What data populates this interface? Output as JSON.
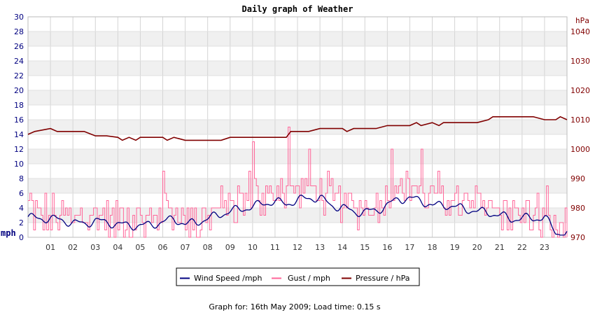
{
  "chart_data": {
    "type": "line",
    "title": "Daily graph of Weather",
    "left_axis": {
      "label": "mph",
      "ylim": [
        0,
        30
      ],
      "ticks": [
        0,
        2,
        4,
        6,
        8,
        10,
        12,
        14,
        16,
        18,
        20,
        22,
        24,
        26,
        28,
        30
      ],
      "color": "#000080"
    },
    "right_axis": {
      "label": "hPa",
      "ylim": [
        970,
        1045
      ],
      "ticks": [
        970,
        980,
        990,
        1000,
        1010,
        1020,
        1030,
        1040
      ],
      "color": "#800000"
    },
    "x_axis": {
      "range": [
        0,
        24
      ],
      "ticks": [
        "01",
        "02",
        "03",
        "04",
        "05",
        "06",
        "07",
        "08",
        "09",
        "10",
        "11",
        "12",
        "13",
        "14",
        "15",
        "16",
        "17",
        "18",
        "19",
        "20",
        "21",
        "22",
        "23"
      ]
    },
    "grid": "horizontal bands + vertical hour lines",
    "legend_position": "bottom-center",
    "series": [
      {
        "name": "Wind Speed /mph",
        "axis": "left",
        "color": "#000080",
        "x": [
          0,
          0.5,
          1,
          1.5,
          2,
          2.5,
          3,
          3.5,
          4,
          4.5,
          5,
          5.5,
          6,
          6.5,
          7,
          7.5,
          8,
          8.5,
          9,
          9.5,
          10,
          10.5,
          11,
          11.5,
          12,
          12.5,
          13,
          13.5,
          14,
          14.5,
          15,
          15.5,
          16,
          16.5,
          17,
          17.5,
          18,
          18.5,
          19,
          19.5,
          20,
          20.5,
          21,
          21.5,
          22,
          22.5,
          23,
          23.5,
          24
        ],
        "values": [
          2.8,
          2.5,
          2.6,
          2.3,
          2.0,
          1.8,
          2.3,
          2.0,
          1.8,
          1.6,
          1.6,
          1.7,
          2.1,
          2.5,
          1.8,
          2.0,
          2.6,
          3.0,
          3.6,
          3.8,
          4.2,
          4.6,
          4.9,
          4.5,
          5.1,
          5.3,
          5.4,
          4.3,
          4.1,
          3.4,
          3.5,
          3.6,
          4.4,
          5.2,
          5.3,
          5.0,
          4.3,
          4.4,
          4.2,
          3.8,
          3.6,
          3.3,
          3.1,
          2.4,
          2.7,
          2.5,
          2.8,
          0.6,
          0.6
        ]
      },
      {
        "name": "Gust / mph",
        "axis": "left",
        "color": "#ff6699",
        "x": [
          0,
          0.5,
          1,
          1.5,
          2,
          2.5,
          3,
          3.5,
          4,
          4.5,
          5,
          5.5,
          6,
          6.5,
          7,
          7.5,
          8,
          8.5,
          9,
          9.5,
          10,
          10.5,
          11,
          11.5,
          12,
          12.5,
          13,
          13.5,
          14,
          14.5,
          15,
          15.5,
          16,
          16.5,
          17,
          17.5,
          18,
          18.5,
          19,
          19.5,
          20,
          20.5,
          21,
          21.5,
          22,
          22.5,
          23,
          23.5,
          24
        ],
        "values": [
          5.0,
          4.0,
          2.5,
          3.0,
          3.0,
          3.0,
          3.0,
          3.0,
          3.0,
          3.0,
          2.5,
          3.0,
          4.0,
          4.0,
          3.0,
          3.0,
          3.5,
          4.0,
          5.0,
          5.5,
          6.5,
          6.5,
          6.5,
          7.0,
          7.0,
          7.0,
          6.0,
          6.0,
          5.0,
          4.5,
          4.5,
          4.5,
          7.0,
          7.0,
          6.5,
          6.5,
          5.5,
          6.0,
          5.5,
          5.0,
          5.0,
          4.5,
          4.5,
          4.0,
          4.0,
          4.0,
          3.5,
          1.5,
          1.5
        ],
        "peaks": [
          [
            6.0,
            9.0
          ],
          [
            10.0,
            13.0
          ],
          [
            11.6,
            15.0
          ],
          [
            12.5,
            12.0
          ],
          [
            16.2,
            12.0
          ],
          [
            17.5,
            12.0
          ]
        ]
      },
      {
        "name": "Pressure / hPa",
        "axis": "right",
        "color": "#800000",
        "x": [
          0,
          0.3,
          1,
          1.3,
          2,
          2.5,
          3,
          3.5,
          4,
          4.2,
          4.5,
          4.8,
          5,
          5.5,
          6,
          6.2,
          6.5,
          7,
          7.5,
          8,
          8.6,
          9,
          9.5,
          10,
          10.5,
          11,
          11.5,
          11.7,
          12,
          12.5,
          13,
          13.5,
          14,
          14.2,
          14.5,
          15,
          15.5,
          16,
          16.5,
          17,
          17.3,
          17.5,
          18,
          18.3,
          18.5,
          19,
          19.5,
          20,
          20.5,
          20.7,
          21,
          21.5,
          22,
          22.5,
          23,
          23.5,
          23.7,
          24
        ],
        "values": [
          1005,
          1006,
          1007,
          1006,
          1006,
          1006,
          1004.5,
          1004.5,
          1004,
          1003,
          1004,
          1003,
          1004,
          1004,
          1004,
          1003,
          1004,
          1003,
          1003,
          1003,
          1003,
          1004,
          1004,
          1004,
          1004,
          1004,
          1004,
          1006,
          1006,
          1006,
          1007,
          1007,
          1007,
          1006,
          1007,
          1007,
          1007,
          1008,
          1008,
          1008,
          1009,
          1008,
          1009,
          1008,
          1009,
          1009,
          1009,
          1009,
          1010,
          1011,
          1011,
          1011,
          1011,
          1011,
          1010,
          1010,
          1011,
          1010
        ]
      }
    ]
  },
  "footer": {
    "caption": "Graph for: 16th May 2009; Load time: 0.15 s"
  }
}
